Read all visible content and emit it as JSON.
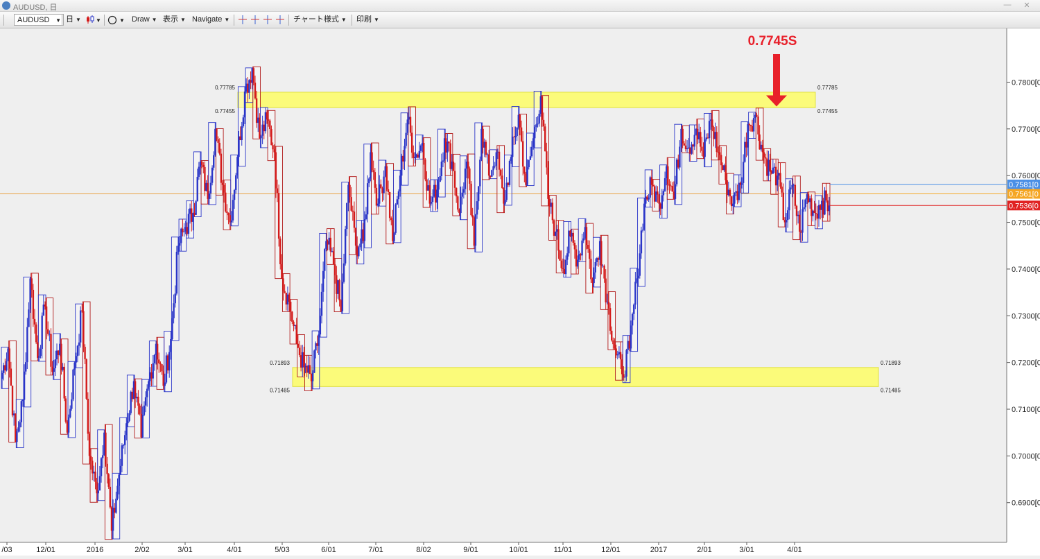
{
  "window": {
    "title": "AUDUSD, 日",
    "minimize": "—",
    "close": "✕"
  },
  "toolbar": {
    "symbol": "AUDUSD",
    "timeframe": "日",
    "draw": "Draw",
    "display": "表示",
    "navigate": "Navigate",
    "chart_style": "チャート様式",
    "print": "印刷",
    "shape_icon": "circle-icon",
    "crosshair_icons": [
      "crosshair-icon",
      "crosshair-icon",
      "crosshair-icon",
      "crosshair-icon"
    ]
  },
  "chart": {
    "annotation": "0.7745S",
    "annotation_color": "#e8202a",
    "zones": [
      {
        "upper": 0.77785,
        "lower": 0.77455,
        "upper_label": "0.77785",
        "lower_label": "0.77455",
        "color": "#fbfb7a"
      },
      {
        "upper": 0.71893,
        "lower": 0.71485,
        "upper_label": "0.71893",
        "lower_label": "0.71485",
        "color": "#fbfb7a"
      }
    ],
    "price_labels": [
      {
        "text": "0.7581",
        "color": "#4a8fe6"
      },
      {
        "text": "0.7561",
        "color": "#f5a623"
      },
      {
        "text": "0.7536",
        "color": "#e02222"
      }
    ],
    "horizontal_line": {
      "price": 0.7561,
      "color": "#e8a040"
    },
    "colors": {
      "up": "#2a35c8",
      "down": "#d41a1a",
      "box_up": "#2a35c8",
      "box_down": "#b01818"
    }
  },
  "chart_data": {
    "type": "candlestick",
    "symbol": "AUDUSD",
    "timeframe": "日",
    "y_axis": {
      "ticks": [
        "0.7800",
        "0.7700",
        "0.7600",
        "0.7500",
        "0.7400",
        "0.7300",
        "0.7200",
        "0.7100",
        "0.7000",
        "0.6900"
      ],
      "suffix": "[0",
      "range": [
        0.6815,
        0.7915
      ]
    },
    "x_axis": {
      "ticks": [
        "/03",
        "12/01",
        "2016",
        "2/02",
        "3/01",
        "4/01",
        "5/03",
        "6/01",
        "7/01",
        "8/02",
        "9/01",
        "10/01",
        "11/01",
        "12/01",
        "2017",
        "2/01",
        "3/01",
        "4/01"
      ]
    },
    "path": [
      0.7165,
      0.723,
      0.703,
      0.712,
      0.738,
      0.721,
      0.732,
      0.718,
      0.724,
      0.705,
      0.72,
      0.731,
      0.7,
      0.692,
      0.705,
      0.684,
      0.696,
      0.707,
      0.716,
      0.704,
      0.716,
      0.724,
      0.715,
      0.725,
      0.745,
      0.749,
      0.752,
      0.763,
      0.755,
      0.77,
      0.758,
      0.75,
      0.764,
      0.778,
      0.783,
      0.768,
      0.772,
      0.765,
      0.738,
      0.733,
      0.724,
      0.719,
      0.716,
      0.726,
      0.746,
      0.741,
      0.731,
      0.758,
      0.745,
      0.746,
      0.765,
      0.754,
      0.762,
      0.746,
      0.76,
      0.772,
      0.764,
      0.767,
      0.754,
      0.757,
      0.768,
      0.763,
      0.752,
      0.763,
      0.745,
      0.77,
      0.76,
      0.765,
      0.754,
      0.764,
      0.773,
      0.758,
      0.768,
      0.777,
      0.755,
      0.748,
      0.74,
      0.747,
      0.742,
      0.749,
      0.737,
      0.746,
      0.733,
      0.723,
      0.7175,
      0.723,
      0.738,
      0.754,
      0.758,
      0.754,
      0.762,
      0.755,
      0.77,
      0.766,
      0.77,
      0.764,
      0.772,
      0.765,
      0.759,
      0.754,
      0.758,
      0.771,
      0.773,
      0.765,
      0.761,
      0.76,
      0.75,
      0.758,
      0.748,
      0.756,
      0.752,
      0.7546,
      0.7536
    ]
  }
}
